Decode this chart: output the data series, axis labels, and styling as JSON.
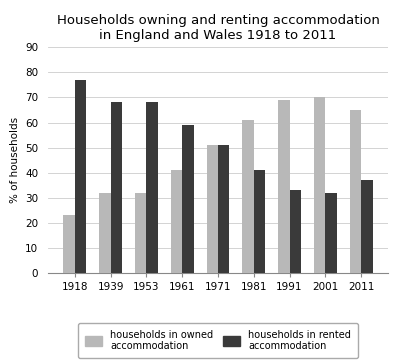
{
  "title": "Households owning and renting accommodation\nin England and Wales 1918 to 2011",
  "years": [
    "1918",
    "1939",
    "1953",
    "1961",
    "1971",
    "1981",
    "1991",
    "2001",
    "2011"
  ],
  "owned": [
    23,
    32,
    32,
    41,
    51,
    61,
    69,
    70,
    65
  ],
  "rented": [
    77,
    68,
    68,
    59,
    51,
    41,
    33,
    32,
    37
  ],
  "owned_color": "#b8b8b8",
  "rented_color": "#3a3a3a",
  "ylabel": "% of households",
  "ylim": [
    0,
    90
  ],
  "yticks": [
    0,
    10,
    20,
    30,
    40,
    50,
    60,
    70,
    80,
    90
  ],
  "legend_owned": "households in owned\naccommodation",
  "legend_rented": "households in rented\naccommodation",
  "bar_width": 0.32,
  "title_fontsize": 9.5,
  "axis_fontsize": 7.5,
  "tick_fontsize": 7.5,
  "legend_fontsize": 7.0
}
